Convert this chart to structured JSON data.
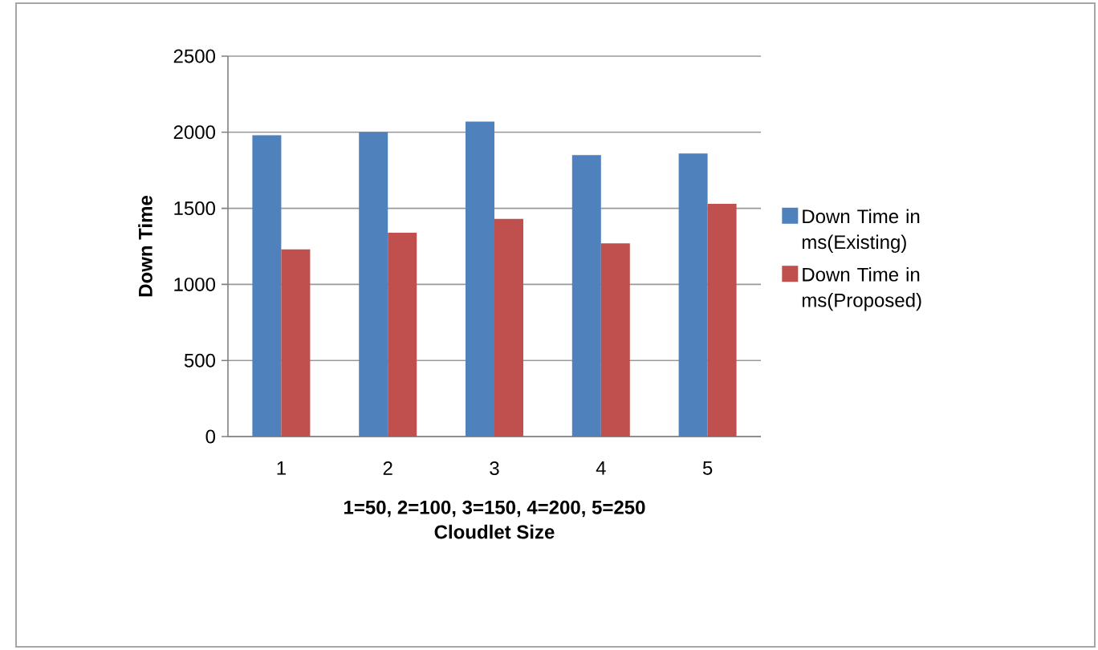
{
  "chart_data": {
    "type": "bar",
    "xlabel": "Cloudlet Size",
    "ylabel": "Down Time",
    "annotations": [
      "1=50, 2=100, 3=150, 4=200, 5=250"
    ],
    "categories": [
      "1",
      "2",
      "3",
      "4",
      "5"
    ],
    "series": [
      {
        "name": "Down Time in ms(Existing)",
        "color": "#4f81bd",
        "values": [
          1980,
          2000,
          2070,
          1850,
          1860
        ]
      },
      {
        "name": "Down Time in ms(Proposed)",
        "color": "#c0504d",
        "values": [
          1230,
          1340,
          1430,
          1270,
          1530
        ]
      }
    ],
    "ylim": [
      0,
      2500
    ],
    "yticks": [
      0,
      500,
      1000,
      1500,
      2000,
      2500
    ],
    "grid": "y",
    "legend": "right"
  }
}
